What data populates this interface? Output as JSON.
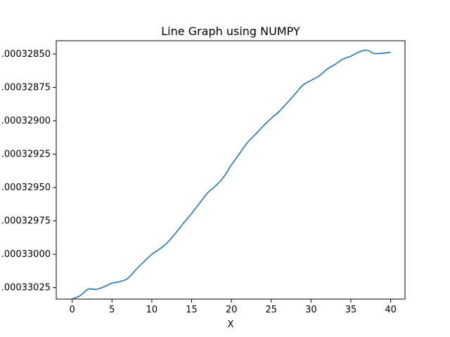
{
  "chart_data": {
    "type": "line",
    "title": "Line Graph using NUMPY",
    "xlabel": "X",
    "ylabel": "",
    "xlim": [
      -2,
      41.8
    ],
    "ylim": [
      0.000330336,
      0.0003284
    ],
    "inverted_y": true,
    "xticks": [
      0,
      5,
      10,
      15,
      20,
      25,
      30,
      35,
      40
    ],
    "xtick_labels": [
      "0",
      "5",
      "10",
      "15",
      "20",
      "25",
      "30",
      "35",
      "40"
    ],
    "yticks": [
      0.0003285,
      0.00032875,
      0.000329,
      0.00032925,
      0.0003295,
      0.00032975,
      0.00033,
      0.00033025
    ],
    "ytick_labels": [
      ".00032850",
      ".00032875",
      ".00032900",
      ".00032925",
      ".00032950",
      ".00032975",
      ".00033000",
      ".00033025"
    ],
    "grid": false,
    "line_color": "#1f77b4",
    "series": [
      {
        "x": [
          0,
          1,
          2,
          3,
          4,
          5,
          6,
          7,
          8,
          9,
          10,
          11,
          12,
          13,
          14,
          15,
          16,
          17,
          18,
          19,
          20,
          21,
          22,
          23,
          24,
          25,
          26,
          27,
          28,
          29,
          30,
          31,
          32,
          33,
          34,
          35,
          36,
          37,
          38,
          39,
          40
        ],
        "values": [
          0.000330335,
          0.00033031,
          0.000330262,
          0.000330263,
          0.000330244,
          0.000330217,
          0.000330205,
          0.00033018,
          0.000330115,
          0.000330056,
          0.000330001,
          0.00032996,
          0.00032991,
          0.000329841,
          0.000329766,
          0.000329694,
          0.000329618,
          0.000329541,
          0.000329488,
          0.000329424,
          0.000329331,
          0.000329247,
          0.000329164,
          0.000329102,
          0.000329039,
          0.000328981,
          0.00032893,
          0.000328865,
          0.000328799,
          0.000328732,
          0.000328697,
          0.000328665,
          0.000328614,
          0.000328578,
          0.000328538,
          0.000328516,
          0.000328485,
          0.000328471,
          0.000328496,
          0.000328493,
          0.000328487
        ]
      }
    ]
  }
}
